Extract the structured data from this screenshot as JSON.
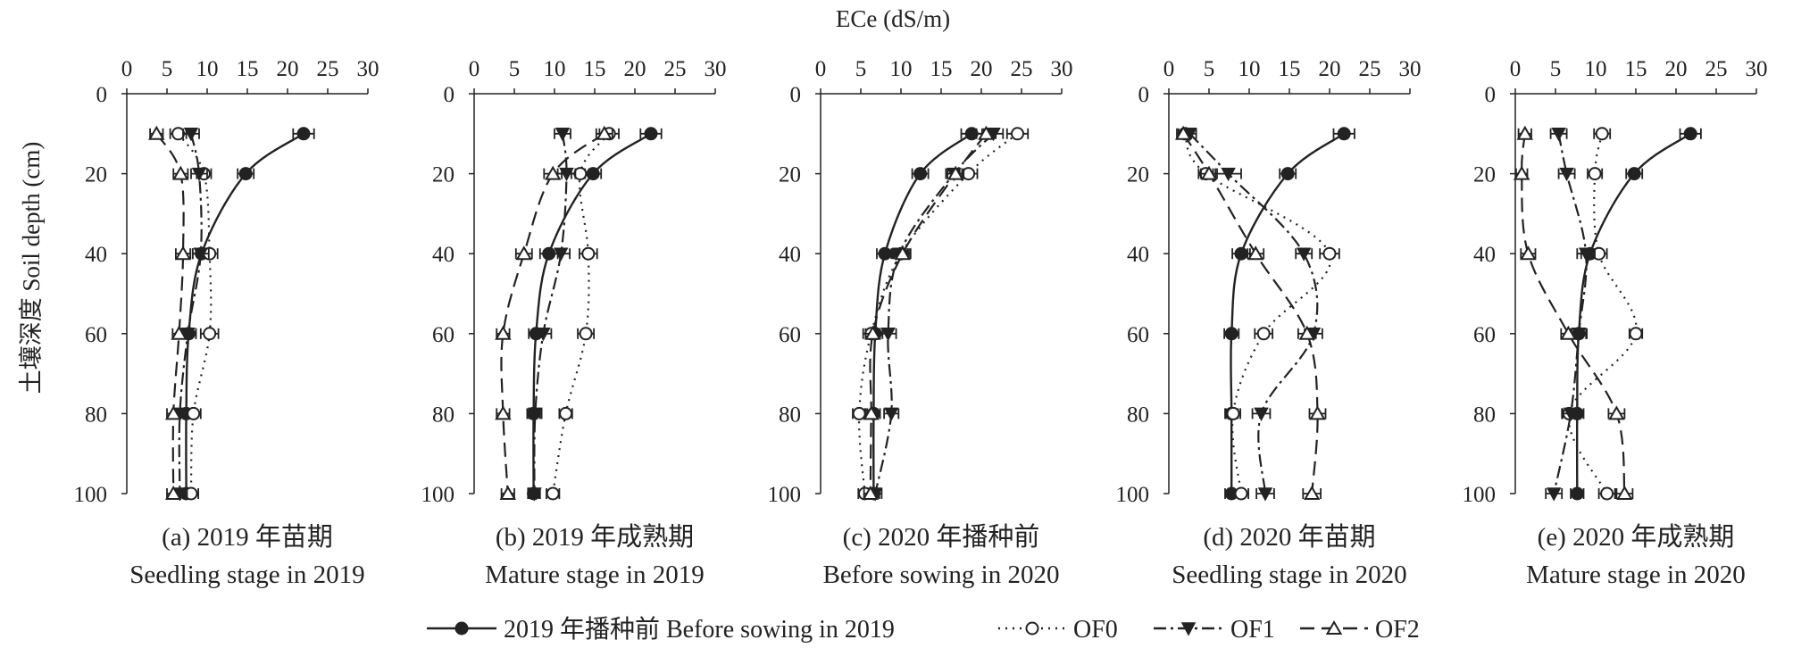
{
  "figure": {
    "x_axis_title": "ECe (dS/m)",
    "y_axis_title": "土壤深度 Soil depth (cm)"
  },
  "legend": [
    {
      "label": "2019 年播种前 Before sowing in 2019",
      "style": "solid",
      "marker": "filled-circle"
    },
    {
      "label": "OF0",
      "style": "dotted",
      "marker": "open-circle"
    },
    {
      "label": "OF1",
      "style": "dash-dot",
      "marker": "filled-triangle-down"
    },
    {
      "label": "OF2",
      "style": "dashed",
      "marker": "open-triangle-up"
    }
  ],
  "chart_data": [
    {
      "type": "line",
      "caption_line1": "(a) 2019 年苗期",
      "caption_line2": "Seedling stage in 2019",
      "x_ticks": [
        0,
        5,
        10,
        15,
        20,
        25,
        30
      ],
      "y_ticks": [
        0,
        20,
        40,
        60,
        80,
        100
      ],
      "xlim": [
        0,
        30
      ],
      "ylim": [
        0,
        100
      ],
      "y_inverted": true,
      "depth": [
        10,
        20,
        40,
        60,
        80,
        100
      ],
      "series": [
        {
          "name": "2019 年播种前 Before sowing in 2019",
          "x": [
            22,
            14.8,
            9.3,
            7.7,
            7.4,
            7.4
          ],
          "err": [
            1.3,
            1.0,
            1.1,
            0.9,
            0.8,
            0.7
          ]
        },
        {
          "name": "OF0",
          "x": [
            6.4,
            9.6,
            10.3,
            10.3,
            8.3,
            8.0
          ],
          "err": [
            1.0,
            0.9,
            1.0,
            1.1,
            0.9,
            0.9
          ]
        },
        {
          "name": "OF1",
          "x": [
            8.0,
            9.0,
            9.2,
            7.6,
            6.6,
            6.6
          ],
          "err": [
            1.0,
            1.0,
            1.0,
            1.0,
            0.9,
            0.9
          ]
        },
        {
          "name": "OF2",
          "x": [
            3.7,
            6.7,
            7.0,
            6.5,
            5.8,
            5.8
          ],
          "err": [
            0.8,
            0.9,
            0.9,
            0.8,
            0.8,
            0.8
          ]
        }
      ]
    },
    {
      "type": "line",
      "caption_line1": "(b) 2019 年成熟期",
      "caption_line2": "Mature stage in 2019",
      "x_ticks": [
        0,
        5,
        10,
        15,
        20,
        25,
        30
      ],
      "y_ticks": [
        0,
        20,
        40,
        60,
        80,
        100
      ],
      "xlim": [
        0,
        30
      ],
      "ylim": [
        0,
        100
      ],
      "y_inverted": true,
      "depth": [
        10,
        20,
        40,
        60,
        80,
        100
      ],
      "series": [
        {
          "name": "2019 年播种前 Before sowing in 2019",
          "x": [
            22,
            14.8,
            9.3,
            7.7,
            7.4,
            7.4
          ],
          "err": [
            1.3,
            1.0,
            1.1,
            0.9,
            0.8,
            0.7
          ]
        },
        {
          "name": "OF0",
          "x": [
            16.8,
            13.2,
            14.2,
            13.9,
            11.4,
            9.8
          ],
          "err": [
            1.2,
            1.1,
            1.1,
            1.0,
            0.8,
            0.8
          ]
        },
        {
          "name": "OF1",
          "x": [
            11.0,
            11.5,
            10.8,
            8.6,
            7.6,
            7.5
          ],
          "err": [
            1.0,
            1.1,
            1.1,
            1.0,
            0.8,
            0.7
          ]
        },
        {
          "name": "OF2",
          "x": [
            16.2,
            9.8,
            6.2,
            3.6,
            3.6,
            4.2
          ],
          "err": [
            1.0,
            1.1,
            1.0,
            0.8,
            0.8,
            0.8
          ]
        }
      ]
    },
    {
      "type": "line",
      "caption_line1": "(c) 2020 年播种前",
      "caption_line2": "Before sowing in 2020",
      "x_ticks": [
        0,
        5,
        10,
        15,
        20,
        25,
        30
      ],
      "y_ticks": [
        0,
        20,
        40,
        60,
        80,
        100
      ],
      "xlim": [
        0,
        30
      ],
      "ylim": [
        0,
        100
      ],
      "y_inverted": true,
      "depth": [
        10,
        20,
        40,
        60,
        80,
        100
      ],
      "series": [
        {
          "name": "2019 年播种前 Before sowing in 2019",
          "x": [
            18.8,
            12.4,
            8.0,
            6.8,
            6.6,
            6.6
          ],
          "err": [
            1.3,
            1.0,
            1.0,
            0.9,
            0.8,
            0.7
          ]
        },
        {
          "name": "OF0",
          "x": [
            24.5,
            18.4,
            10.0,
            6.3,
            4.8,
            5.5
          ],
          "err": [
            1.3,
            1.1,
            1.0,
            1.0,
            0.8,
            0.8
          ]
        },
        {
          "name": "OF1",
          "x": [
            21.5,
            16.6,
            9.8,
            8.4,
            8.8,
            6.8
          ],
          "err": [
            1.2,
            1.0,
            1.0,
            1.0,
            0.9,
            0.8
          ]
        },
        {
          "name": "OF2",
          "x": [
            20.6,
            16.8,
            10.2,
            6.5,
            6.3,
            6.2
          ],
          "err": [
            1.2,
            1.0,
            1.0,
            0.9,
            0.8,
            0.8
          ]
        }
      ]
    },
    {
      "type": "line",
      "caption_line1": "(d) 2020 年苗期",
      "caption_line2": "Seedling stage in 2020",
      "x_ticks": [
        0,
        5,
        10,
        15,
        20,
        25,
        30
      ],
      "y_ticks": [
        0,
        20,
        40,
        60,
        80,
        100
      ],
      "xlim": [
        0,
        30
      ],
      "ylim": [
        0,
        100
      ],
      "y_inverted": true,
      "depth": [
        10,
        20,
        40,
        60,
        80,
        100
      ],
      "series": [
        {
          "name": "2019 年播种前 Before sowing in 2019",
          "x": [
            21.8,
            14.8,
            9.0,
            7.8,
            7.8,
            7.8
          ],
          "err": [
            1.3,
            1.0,
            1.1,
            0.9,
            0.8,
            0.8
          ]
        },
        {
          "name": "OF0",
          "x": [
            2.0,
            4.6,
            20.0,
            11.8,
            8.0,
            9.0
          ],
          "err": [
            0.8,
            0.9,
            1.2,
            1.1,
            0.9,
            0.9
          ]
        },
        {
          "name": "OF1",
          "x": [
            2.6,
            7.4,
            16.8,
            18.0,
            11.5,
            12.0
          ],
          "err": [
            0.8,
            1.6,
            1.0,
            1.1,
            1.1,
            1.1
          ]
        },
        {
          "name": "OF2",
          "x": [
            1.8,
            5.0,
            10.8,
            17.2,
            18.5,
            17.8
          ],
          "err": [
            0.8,
            1.0,
            1.0,
            1.1,
            1.0,
            1.1
          ]
        }
      ]
    },
    {
      "type": "line",
      "caption_line1": "(e) 2020 年成熟期",
      "caption_line2": "Mature stage in 2020",
      "x_ticks": [
        0,
        5,
        10,
        15,
        20,
        25,
        30
      ],
      "y_ticks": [
        0,
        20,
        40,
        60,
        80,
        100
      ],
      "xlim": [
        0,
        30
      ],
      "ylim": [
        0,
        100
      ],
      "y_inverted": true,
      "depth": [
        10,
        20,
        40,
        60,
        80,
        100
      ],
      "series": [
        {
          "name": "2019 年播种前 Before sowing in 2019",
          "x": [
            21.8,
            14.8,
            9.3,
            7.9,
            7.7,
            7.7
          ],
          "err": [
            1.3,
            1.0,
            1.1,
            0.9,
            0.8,
            0.8
          ]
        },
        {
          "name": "OF0",
          "x": [
            10.8,
            9.9,
            10.4,
            15.0,
            6.7,
            11.4
          ],
          "err": [
            1.0,
            0.9,
            1.0,
            0.8,
            0.9,
            1.0
          ]
        },
        {
          "name": "OF1",
          "x": [
            5.4,
            6.4,
            8.8,
            7.9,
            6.9,
            4.8
          ],
          "err": [
            1.0,
            1.0,
            1.1,
            1.0,
            1.0,
            1.0
          ]
        },
        {
          "name": "OF2",
          "x": [
            1.2,
            0.8,
            1.6,
            6.6,
            12.6,
            13.6
          ],
          "err": [
            0.8,
            0.7,
            0.9,
            0.9,
            1.0,
            1.0
          ]
        }
      ]
    }
  ]
}
